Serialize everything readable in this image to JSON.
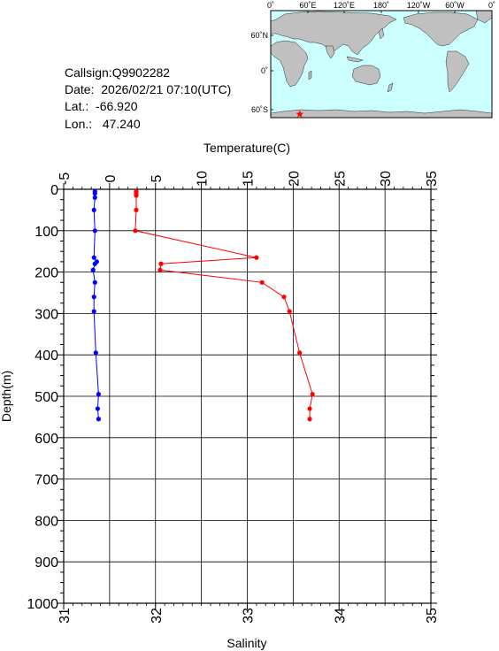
{
  "station": {
    "callsign_label": "Callsign:",
    "callsign": "Q9902282",
    "date_label": "Date:",
    "date": "2026/02/21 07:10(UTC)",
    "lat_label": "Lat.:",
    "lat": "-66.920",
    "lon_label": "Lon.:",
    "lon": "47.240"
  },
  "map": {
    "lon_ticks": [
      "0˚",
      "60˚E",
      "120˚E",
      "180˚",
      "120˚W",
      "60˚W",
      "0˚"
    ],
    "lat_ticks": [
      "60˚N",
      "0˚",
      "60˚S"
    ],
    "ocean_color": "#ccffff",
    "land_color": "#c0c0c0",
    "marker": "star",
    "marker_color": "#ff0000",
    "marker_lon": 47.24,
    "marker_lat": -66.92
  },
  "chart_data": {
    "type": "line",
    "ylabel": "Depth(m)",
    "top_axis_label": "Temperature(C)",
    "bottom_axis_label": "Salinity",
    "depth_range": [
      0,
      1000
    ],
    "depth_ticks": [
      0,
      100,
      200,
      300,
      400,
      500,
      600,
      700,
      800,
      900,
      1000
    ],
    "temperature_range": [
      -5,
      35
    ],
    "temperature_ticks": [
      -5,
      0,
      5,
      10,
      15,
      20,
      25,
      30,
      35
    ],
    "salinity_range": [
      31,
      35
    ],
    "salinity_ticks": [
      31,
      32,
      33,
      34,
      35
    ],
    "grid": true,
    "series": [
      {
        "name": "Temperature(C)",
        "axis": "top",
        "color": "#ff0000",
        "points": [
          {
            "depth": 5,
            "value": 2.9
          },
          {
            "depth": 10,
            "value": 2.9
          },
          {
            "depth": 15,
            "value": 2.9
          },
          {
            "depth": 50,
            "value": 2.9
          },
          {
            "depth": 100,
            "value": 2.8
          },
          {
            "depth": 165,
            "value": 16.0
          },
          {
            "depth": 180,
            "value": 5.6
          },
          {
            "depth": 195,
            "value": 5.5
          },
          {
            "depth": 225,
            "value": 16.6
          },
          {
            "depth": 260,
            "value": 19.0
          },
          {
            "depth": 295,
            "value": 19.6
          },
          {
            "depth": 395,
            "value": 20.7
          },
          {
            "depth": 495,
            "value": 22.1
          },
          {
            "depth": 530,
            "value": 21.8
          },
          {
            "depth": 555,
            "value": 21.8
          }
        ]
      },
      {
        "name": "Salinity",
        "axis": "bottom",
        "color": "#0000ff",
        "points": [
          {
            "depth": 5,
            "value": 31.34
          },
          {
            "depth": 10,
            "value": 31.34
          },
          {
            "depth": 20,
            "value": 31.34
          },
          {
            "depth": 50,
            "value": 31.33
          },
          {
            "depth": 100,
            "value": 31.34
          },
          {
            "depth": 165,
            "value": 31.33
          },
          {
            "depth": 175,
            "value": 31.36
          },
          {
            "depth": 180,
            "value": 31.34
          },
          {
            "depth": 195,
            "value": 31.32
          },
          {
            "depth": 225,
            "value": 31.34
          },
          {
            "depth": 260,
            "value": 31.33
          },
          {
            "depth": 295,
            "value": 31.33
          },
          {
            "depth": 395,
            "value": 31.35
          },
          {
            "depth": 495,
            "value": 31.38
          },
          {
            "depth": 530,
            "value": 31.37
          },
          {
            "depth": 555,
            "value": 31.38
          }
        ]
      }
    ]
  }
}
